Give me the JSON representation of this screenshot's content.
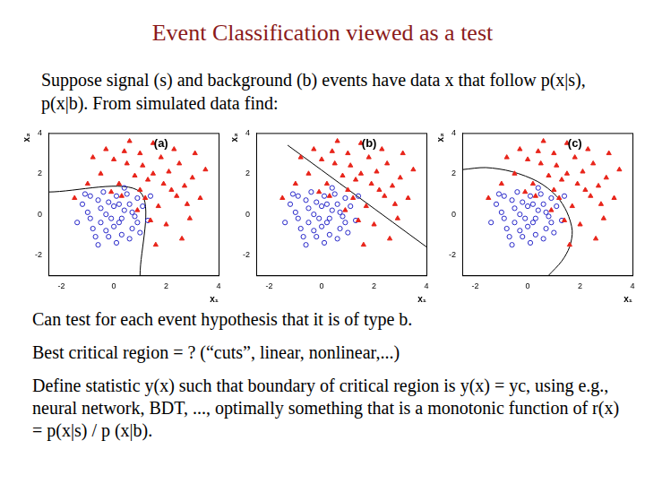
{
  "title": "Event Classification viewed as a test",
  "intro": "Suppose signal (s) and background (b) events have data x that follow p(x|s), p(x|b).  From simulated data find:",
  "chart_data": [
    {
      "type": "scatter",
      "annotation": "(a)",
      "x_label": "x₁",
      "y_label": "x₂",
      "xlim": [
        -2.5,
        4
      ],
      "ylim": [
        -3,
        4
      ],
      "xticks": [
        -2,
        0,
        2,
        4
      ],
      "yticks": [
        -2,
        0,
        2,
        4
      ],
      "grid": false,
      "series": [
        {
          "color": "#e8241a",
          "marker": "triangle",
          "values": [
            [
              1.5,
              2.0
            ],
            [
              0.5,
              2.5
            ],
            [
              2.2,
              1.2
            ],
            [
              -0.5,
              2.0
            ],
            [
              1.0,
              3.0
            ],
            [
              2.8,
              0.5
            ],
            [
              0.2,
              1.5
            ],
            [
              1.8,
              2.8
            ],
            [
              3.0,
              1.8
            ],
            [
              -1.0,
              1.5
            ],
            [
              2.5,
              2.5
            ],
            [
              1.2,
              0.8
            ],
            [
              0.8,
              1.9
            ],
            [
              2.0,
              -0.5
            ],
            [
              1.5,
              3.5
            ],
            [
              -0.3,
              3.2
            ],
            [
              3.3,
              0.8
            ],
            [
              2.6,
              -1.2
            ],
            [
              0.0,
              2.7
            ],
            [
              1.9,
              1.5
            ],
            [
              1.0,
              1.2
            ],
            [
              2.3,
              3.2
            ],
            [
              -0.8,
              2.8
            ],
            [
              3.5,
              2.2
            ],
            [
              0.6,
              3.6
            ],
            [
              1.4,
              -0.3
            ],
            [
              2.9,
              -0.2
            ],
            [
              1.7,
              0.4
            ],
            [
              0.3,
              0.9
            ],
            [
              -1.5,
              0.8
            ],
            [
              2.1,
              2.1
            ],
            [
              1.1,
              2.4
            ],
            [
              3.1,
              3.0
            ],
            [
              0.9,
              0.2
            ],
            [
              2.4,
              0.9
            ],
            [
              -0.1,
              1.1
            ],
            [
              1.6,
              -1.5
            ],
            [
              2.7,
              1.4
            ],
            [
              0.4,
              3.1
            ],
            [
              1.3,
              1.7
            ]
          ]
        },
        {
          "color": "#2626c8",
          "marker": "circle",
          "values": [
            [
              -0.5,
              0.3
            ],
            [
              0.2,
              -0.4
            ],
            [
              0.6,
              0.5
            ],
            [
              -0.9,
              -0.2
            ],
            [
              0.1,
              0.9
            ],
            [
              -0.3,
              -0.8
            ],
            [
              0.8,
              -0.1
            ],
            [
              -0.6,
              0.7
            ],
            [
              0.4,
              0.2
            ],
            [
              -0.1,
              -0.2
            ],
            [
              1.1,
              0.4
            ],
            [
              -1.2,
              0.5
            ],
            [
              0.3,
              -1.0
            ],
            [
              -0.4,
              1.1
            ],
            [
              0.7,
              -0.7
            ],
            [
              -0.8,
              -0.7
            ],
            [
              0.0,
              0.4
            ],
            [
              0.5,
              1.0
            ],
            [
              -1.0,
              0.1
            ],
            [
              0.9,
              0.8
            ],
            [
              -0.2,
              0.6
            ],
            [
              0.3,
              -0.2
            ],
            [
              -0.7,
              -1.1
            ],
            [
              1.3,
              -0.3
            ],
            [
              0.1,
              -1.4
            ],
            [
              -1.4,
              -0.4
            ],
            [
              0.6,
              -1.2
            ],
            [
              -0.3,
              0.0
            ],
            [
              0.2,
              0.5
            ],
            [
              -0.5,
              -0.4
            ],
            [
              1.0,
              -0.9
            ],
            [
              -1.1,
              1.0
            ],
            [
              0.4,
              1.3
            ],
            [
              -0.6,
              -1.5
            ],
            [
              1.4,
              0.9
            ],
            [
              0.0,
              -0.6
            ],
            [
              -0.9,
              0.9
            ],
            [
              0.7,
              0.1
            ],
            [
              -0.2,
              -1.1
            ],
            [
              0.9,
              -0.4
            ]
          ]
        }
      ],
      "boundary": {
        "x": [
          -2.5,
          1,
          1
        ],
        "y": [
          1.1,
          1.1,
          -3
        ]
      }
    },
    {
      "type": "scatter",
      "annotation": "(b)",
      "x_label": "x₁",
      "y_label": "x₂",
      "xlim": [
        -2.5,
        4
      ],
      "ylim": [
        -3,
        4
      ],
      "xticks": [
        -2,
        0,
        2,
        4
      ],
      "yticks": [
        -2,
        0,
        2,
        4
      ],
      "grid": false,
      "series": [
        {
          "color": "#e8241a",
          "marker": "triangle",
          "values": [
            [
              1.5,
              2.0
            ],
            [
              0.5,
              2.5
            ],
            [
              2.2,
              1.2
            ],
            [
              -0.5,
              2.0
            ],
            [
              1.0,
              3.0
            ],
            [
              2.8,
              0.5
            ],
            [
              0.2,
              1.5
            ],
            [
              1.8,
              2.8
            ],
            [
              3.0,
              1.8
            ],
            [
              -1.0,
              1.5
            ],
            [
              2.5,
              2.5
            ],
            [
              1.2,
              0.8
            ],
            [
              0.8,
              1.9
            ],
            [
              2.0,
              -0.5
            ],
            [
              1.5,
              3.5
            ],
            [
              -0.3,
              3.2
            ],
            [
              3.3,
              0.8
            ],
            [
              2.6,
              -1.2
            ],
            [
              0.0,
              2.7
            ],
            [
              1.9,
              1.5
            ],
            [
              1.0,
              1.2
            ],
            [
              2.3,
              3.2
            ],
            [
              -0.8,
              2.8
            ],
            [
              3.5,
              2.2
            ],
            [
              0.6,
              3.6
            ],
            [
              1.4,
              -0.3
            ],
            [
              2.9,
              -0.2
            ],
            [
              1.7,
              0.4
            ],
            [
              0.3,
              0.9
            ],
            [
              -1.5,
              0.8
            ],
            [
              2.1,
              2.1
            ],
            [
              1.1,
              2.4
            ],
            [
              3.1,
              3.0
            ],
            [
              0.9,
              0.2
            ],
            [
              2.4,
              0.9
            ],
            [
              -0.1,
              1.1
            ],
            [
              1.6,
              -1.5
            ],
            [
              2.7,
              1.4
            ],
            [
              0.4,
              3.1
            ],
            [
              1.3,
              1.7
            ]
          ]
        },
        {
          "color": "#2626c8",
          "marker": "circle",
          "values": [
            [
              -0.5,
              0.3
            ],
            [
              0.2,
              -0.4
            ],
            [
              0.6,
              0.5
            ],
            [
              -0.9,
              -0.2
            ],
            [
              0.1,
              0.9
            ],
            [
              -0.3,
              -0.8
            ],
            [
              0.8,
              -0.1
            ],
            [
              -0.6,
              0.7
            ],
            [
              0.4,
              0.2
            ],
            [
              -0.1,
              -0.2
            ],
            [
              1.1,
              0.4
            ],
            [
              -1.2,
              0.5
            ],
            [
              0.3,
              -1.0
            ],
            [
              -0.4,
              1.1
            ],
            [
              0.7,
              -0.7
            ],
            [
              -0.8,
              -0.7
            ],
            [
              0.0,
              0.4
            ],
            [
              0.5,
              1.0
            ],
            [
              -1.0,
              0.1
            ],
            [
              0.9,
              0.8
            ],
            [
              -0.2,
              0.6
            ],
            [
              0.3,
              -0.2
            ],
            [
              -0.7,
              -1.1
            ],
            [
              1.3,
              -0.3
            ],
            [
              0.1,
              -1.4
            ],
            [
              -1.4,
              -0.4
            ],
            [
              0.6,
              -1.2
            ],
            [
              -0.3,
              0.0
            ],
            [
              0.2,
              0.5
            ],
            [
              -0.5,
              -0.4
            ],
            [
              1.0,
              -0.9
            ],
            [
              -1.1,
              1.0
            ],
            [
              0.4,
              1.3
            ],
            [
              -0.6,
              -1.5
            ],
            [
              1.4,
              0.9
            ],
            [
              0.0,
              -0.6
            ],
            [
              -0.9,
              0.9
            ],
            [
              0.7,
              0.1
            ],
            [
              -0.2,
              -1.1
            ],
            [
              0.9,
              -0.4
            ]
          ]
        }
      ],
      "boundary": {
        "x": [
          -1.3,
          4
        ],
        "y": [
          3.4,
          -1.6
        ]
      }
    },
    {
      "type": "scatter",
      "annotation": "(c)",
      "x_label": "x₁",
      "y_label": "x₂",
      "xlim": [
        -2.5,
        4
      ],
      "ylim": [
        -3,
        4
      ],
      "xticks": [
        -2,
        0,
        2,
        4
      ],
      "yticks": [
        -2,
        0,
        2,
        4
      ],
      "grid": false,
      "series": [
        {
          "color": "#e8241a",
          "marker": "triangle",
          "values": [
            [
              1.5,
              2.0
            ],
            [
              0.5,
              2.5
            ],
            [
              2.2,
              1.2
            ],
            [
              -0.5,
              2.0
            ],
            [
              1.0,
              3.0
            ],
            [
              2.8,
              0.5
            ],
            [
              0.2,
              1.5
            ],
            [
              1.8,
              2.8
            ],
            [
              3.0,
              1.8
            ],
            [
              -1.0,
              1.5
            ],
            [
              2.5,
              2.5
            ],
            [
              1.2,
              0.8
            ],
            [
              0.8,
              1.9
            ],
            [
              2.0,
              -0.5
            ],
            [
              1.5,
              3.5
            ],
            [
              -0.3,
              3.2
            ],
            [
              3.3,
              0.8
            ],
            [
              2.6,
              -1.2
            ],
            [
              0.0,
              2.7
            ],
            [
              1.9,
              1.5
            ],
            [
              1.0,
              1.2
            ],
            [
              2.3,
              3.2
            ],
            [
              -0.8,
              2.8
            ],
            [
              3.5,
              2.2
            ],
            [
              0.6,
              3.6
            ],
            [
              1.4,
              -0.3
            ],
            [
              2.9,
              -0.2
            ],
            [
              1.7,
              0.4
            ],
            [
              0.3,
              0.9
            ],
            [
              -1.5,
              0.8
            ],
            [
              2.1,
              2.1
            ],
            [
              1.1,
              2.4
            ],
            [
              3.1,
              3.0
            ],
            [
              0.9,
              0.2
            ],
            [
              2.4,
              0.9
            ],
            [
              -0.1,
              1.1
            ],
            [
              1.6,
              -1.5
            ],
            [
              2.7,
              1.4
            ],
            [
              0.4,
              3.1
            ],
            [
              1.3,
              1.7
            ]
          ]
        },
        {
          "color": "#2626c8",
          "marker": "circle",
          "values": [
            [
              -0.5,
              0.3
            ],
            [
              0.2,
              -0.4
            ],
            [
              0.6,
              0.5
            ],
            [
              -0.9,
              -0.2
            ],
            [
              0.1,
              0.9
            ],
            [
              -0.3,
              -0.8
            ],
            [
              0.8,
              -0.1
            ],
            [
              -0.6,
              0.7
            ],
            [
              0.4,
              0.2
            ],
            [
              -0.1,
              -0.2
            ],
            [
              1.1,
              0.4
            ],
            [
              -1.2,
              0.5
            ],
            [
              0.3,
              -1.0
            ],
            [
              -0.4,
              1.1
            ],
            [
              0.7,
              -0.7
            ],
            [
              -0.8,
              -0.7
            ],
            [
              0.0,
              0.4
            ],
            [
              0.5,
              1.0
            ],
            [
              -1.0,
              0.1
            ],
            [
              0.9,
              0.8
            ],
            [
              -0.2,
              0.6
            ],
            [
              0.3,
              -0.2
            ],
            [
              -0.7,
              -1.1
            ],
            [
              1.3,
              -0.3
            ],
            [
              0.1,
              -1.4
            ],
            [
              -1.4,
              -0.4
            ],
            [
              0.6,
              -1.2
            ],
            [
              -0.3,
              0.0
            ],
            [
              0.2,
              0.5
            ],
            [
              -0.5,
              -0.4
            ],
            [
              1.0,
              -0.9
            ],
            [
              -1.1,
              1.0
            ],
            [
              0.4,
              1.3
            ],
            [
              -0.6,
              -1.5
            ],
            [
              1.4,
              0.9
            ],
            [
              0.0,
              -0.6
            ],
            [
              -0.9,
              0.9
            ],
            [
              0.7,
              0.1
            ],
            [
              -0.2,
              -1.1
            ],
            [
              0.9,
              -0.4
            ]
          ]
        }
      ],
      "boundary": {
        "x": [
          -2.5,
          -1.6,
          -0.6,
          0.4,
          1.1,
          1.5,
          1.7,
          1.6,
          1.3,
          0.8
        ],
        "y": [
          2.2,
          2.3,
          2.1,
          1.6,
          0.9,
          0.1,
          -0.8,
          -1.6,
          -2.3,
          -3.0
        ]
      }
    }
  ],
  "body": [
    "Can test for each event hypothesis that it is of type b.",
    "Best critical region = ? (“cuts”, linear, nonlinear,...)",
    "Define statistic y(x) such that boundary of critical region is  y(x) = yc, using e.g., neural network, BDT, ..., optimally something that is a monotonic function of r(x) = p(x|s) / p (x|b)."
  ]
}
